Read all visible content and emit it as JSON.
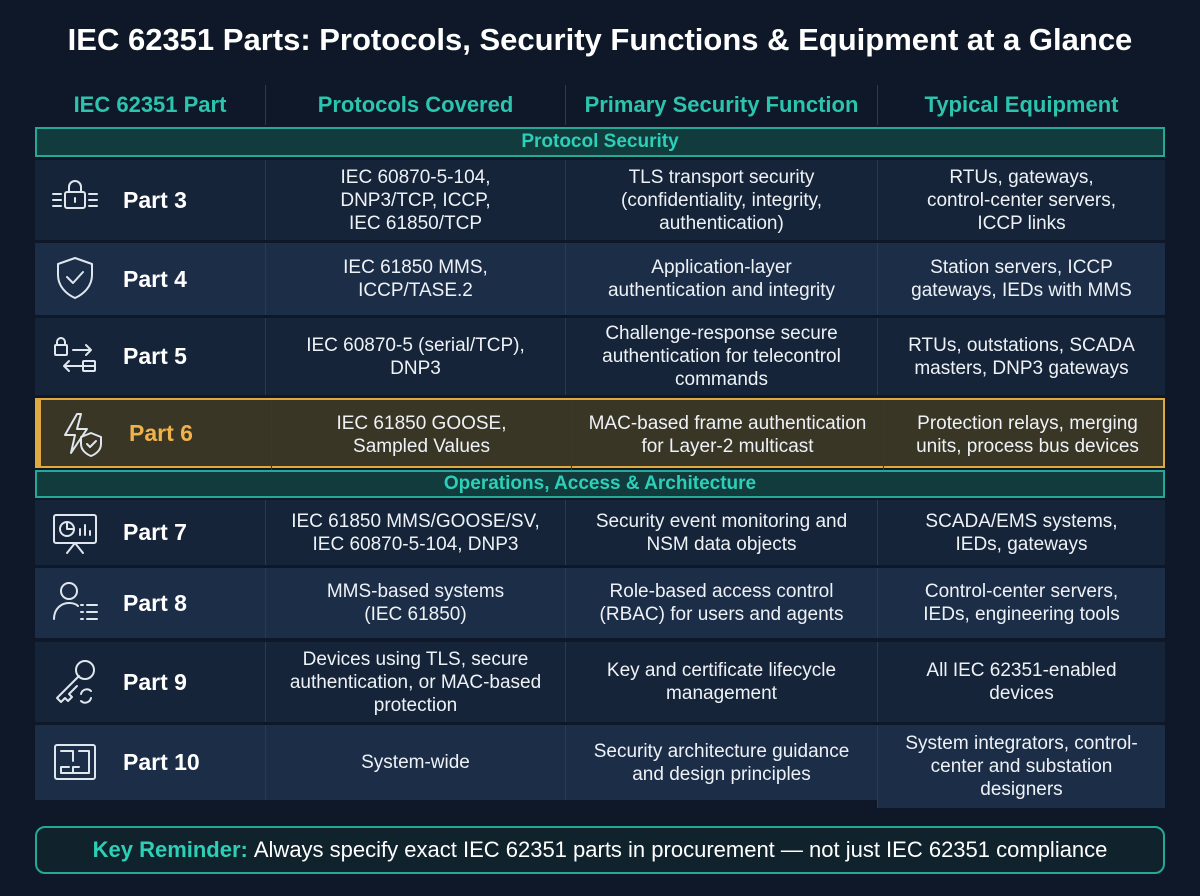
{
  "title": "IEC 62351 Parts: Protocols, Security Functions & Equipment at a Glance",
  "table": {
    "headers": [
      "IEC 62351 Part",
      "Protocols Covered",
      "Primary Security Function",
      "Typical Equipment"
    ],
    "sections": [
      {
        "label": "Protocol Security",
        "rows": [
          {
            "part": "Part 3",
            "protocols": [
              "IEC 60870-5-104,",
              "DNP3/TCP, ICCP,",
              "IEC 61850/TCP"
            ],
            "function": [
              "TLS transport security",
              "(confidentiality, integrity,",
              "authentication)"
            ],
            "equipment": [
              "RTUs, gateways,",
              "control-center servers,",
              "ICCP links"
            ]
          },
          {
            "part": "Part 4",
            "protocols": [
              "IEC 61850 MMS,",
              "ICCP/TASE.2"
            ],
            "function": [
              "Application-layer",
              "authentication and integrity"
            ],
            "equipment": [
              "Station servers, ICCP",
              "gateways, IEDs with MMS"
            ]
          },
          {
            "part": "Part 5",
            "protocols": [
              "IEC 60870-5 (serial/TCP),",
              "DNP3"
            ],
            "function": [
              "Challenge-response secure",
              "authentication for telecontrol",
              "commands"
            ],
            "equipment": [
              "RTUs, outstations, SCADA",
              "masters, DNP3 gateways"
            ]
          },
          {
            "part": "Part 6",
            "protocols": [
              "IEC 61850 GOOSE,",
              "Sampled Values"
            ],
            "function": [
              "MAC-based frame authentication",
              "for Layer-2 multicast"
            ],
            "equipment": [
              "Protection relays, merging",
              "units, process bus devices"
            ]
          }
        ]
      },
      {
        "label": "Operations, Access & Architecture",
        "rows": [
          {
            "part": "Part 7",
            "protocols": [
              "IEC 61850 MMS/GOOSE/SV,",
              "IEC 60870-5-104, DNP3"
            ],
            "function": [
              "Security event monitoring and",
              "NSM data objects"
            ],
            "equipment": [
              "SCADA/EMS systems,",
              "IEDs, gateways"
            ]
          },
          {
            "part": "Part 8",
            "protocols": [
              "MMS-based systems",
              "(IEC 61850)"
            ],
            "function": [
              "Role-based access control",
              "(RBAC) for users and agents"
            ],
            "equipment": [
              "Control-center servers,",
              "IEDs, engineering tools"
            ]
          },
          {
            "part": "Part 9",
            "protocols": [
              "Devices using TLS, secure",
              "authentication, or MAC-based",
              "protection"
            ],
            "function": [
              "Key and certificate lifecycle",
              "management"
            ],
            "equipment": [
              "All IEC 62351-enabled",
              "devices"
            ]
          },
          {
            "part": "Part 10",
            "protocols": [
              "System-wide"
            ],
            "function": [
              "Security architecture guidance",
              "and design principles"
            ],
            "equipment": [
              "System integrators, control-",
              "center and substation",
              "designers"
            ]
          }
        ]
      }
    ]
  },
  "reminder": {
    "label": "Key Reminder:",
    "text": "Always specify exact IEC 62351 parts in procurement — not just IEC 62351 compliance"
  }
}
